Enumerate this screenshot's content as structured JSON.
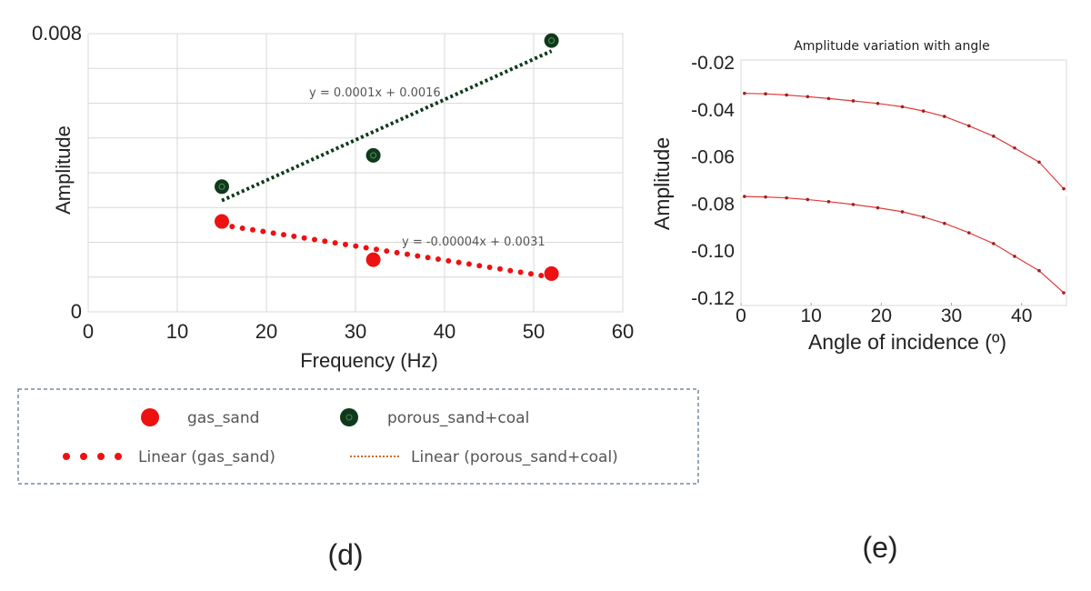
{
  "chart_data": [
    {
      "type": "scatter",
      "title": "",
      "xlabel": "Frequency (Hz)",
      "ylabel": "Amplitude",
      "xlim": [
        0,
        60
      ],
      "ylim": [
        0,
        0.008
      ],
      "x_ticks": [
        "0",
        "10",
        "20",
        "30",
        "40",
        "50",
        "60"
      ],
      "y_ticks": [
        "0",
        "0.008"
      ],
      "grid": true,
      "legend_position": "bottom",
      "series": [
        {
          "name": "gas_sand",
          "color": "#ee1111",
          "x": [
            15,
            32,
            52
          ],
          "y": [
            0.0026,
            0.0015,
            0.0011
          ]
        },
        {
          "name": "porous_sand+coal",
          "color": "#0e3a1a",
          "x": [
            15,
            32,
            52
          ],
          "y": [
            0.0036,
            0.0045,
            0.0078
          ]
        }
      ],
      "trendlines": [
        {
          "name": "Linear (gas_sand)",
          "color": "#ee1111",
          "equation": "y = -0.00004x + 0.0031",
          "x": [
            15,
            52
          ],
          "y": [
            0.0025,
            0.001
          ]
        },
        {
          "name": "Linear (porous_sand+coal)",
          "color": "#0e3a1a",
          "equation": "y = 0.0001x + 0.0016",
          "x": [
            15,
            52
          ],
          "y": [
            0.0032,
            0.0075
          ]
        }
      ],
      "panel_label": "(d)"
    },
    {
      "type": "line",
      "title": "Amplitude variation with angle",
      "xlabel": "Angle of incidence (º)",
      "ylabel": "Amplitude",
      "xlim": [
        0,
        46
      ],
      "ylim": [
        -0.12,
        -0.02
      ],
      "x_ticks": [
        "0",
        "10",
        "20",
        "30",
        "40"
      ],
      "y_ticks": [
        "-0.02",
        "-0.04",
        "-0.06",
        "-0.08",
        "-0.10",
        "-0.12"
      ],
      "color": "#e03b3b",
      "series": [
        {
          "x": [
            0.5,
            3.5,
            6.5,
            9.5,
            12.5,
            16,
            19.5,
            23,
            26,
            29,
            32.5,
            36,
            39,
            42.5,
            46
          ],
          "y": [
            -0.033,
            -0.0332,
            -0.0337,
            -0.0344,
            -0.0352,
            -0.0362,
            -0.0373,
            -0.0387,
            -0.0405,
            -0.0428,
            -0.0468,
            -0.0512,
            -0.0562,
            -0.0622,
            -0.0735
          ]
        },
        {
          "x": [
            0.5,
            3.5,
            6.5,
            9.5,
            12.5,
            16,
            19.5,
            23,
            26,
            29,
            32.5,
            36,
            39,
            42.5,
            46
          ],
          "y": [
            -0.0768,
            -0.077,
            -0.0774,
            -0.0781,
            -0.079,
            -0.0802,
            -0.0816,
            -0.0833,
            -0.0855,
            -0.0882,
            -0.0922,
            -0.0968,
            -0.1022,
            -0.1083,
            -0.1177
          ]
        }
      ],
      "panel_label": "(e)"
    }
  ]
}
